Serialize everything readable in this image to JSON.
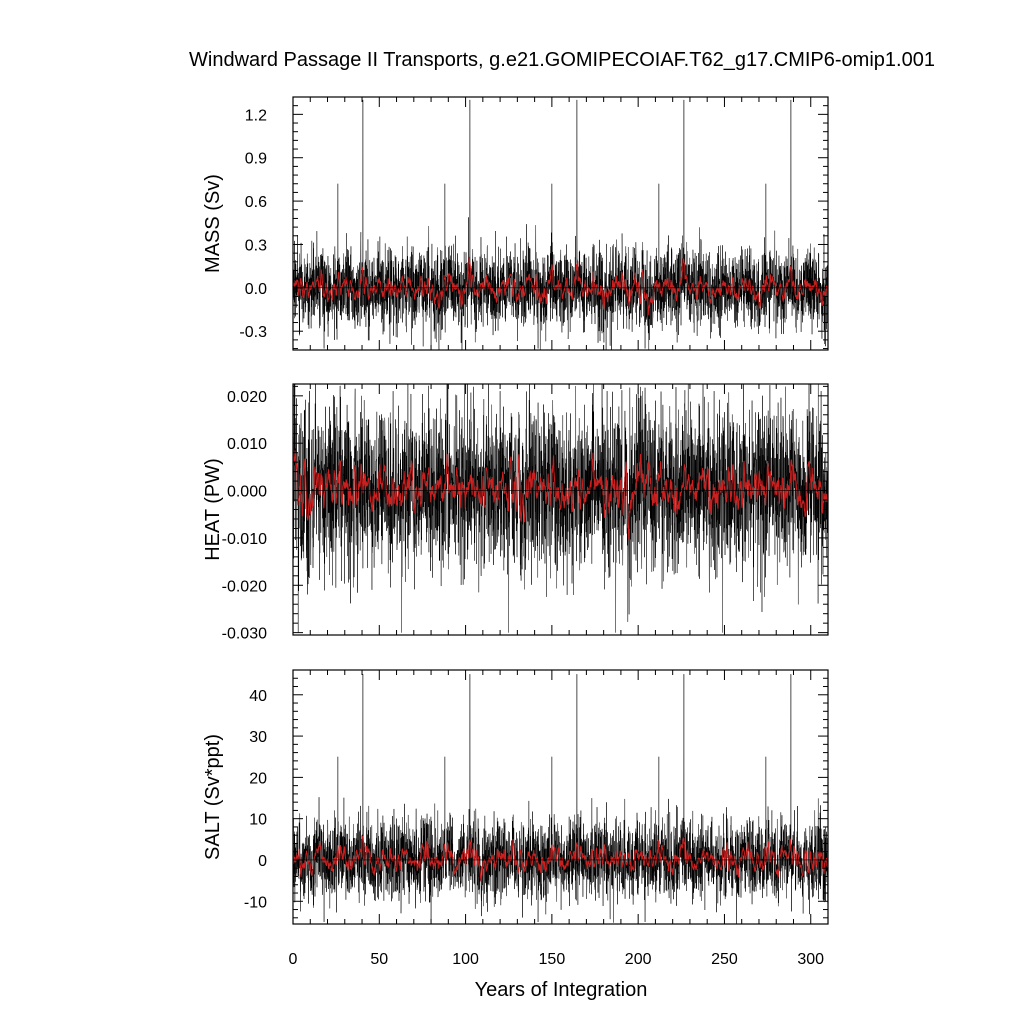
{
  "title": "Windward Passage II Transports, g.e21.GOMIPECOIAF.T62_g17.CMIP6-omip1.001",
  "xlabel": "Years of Integration",
  "colors": {
    "raw": "#000000",
    "smoothed": "#cc1f1f",
    "frame": "#000000"
  },
  "chart_data": [
    {
      "type": "line",
      "title": "Windward Passage II Transports, g.e21.GOMIPECOIAF.T62_g17.CMIP6-omip1.001",
      "ylabel": "MASS (Sv)",
      "xlabel": "",
      "xlim": [
        0,
        310
      ],
      "ylim": [
        -0.43,
        1.32
      ],
      "xticks": [
        "0",
        "50",
        "100",
        "150",
        "200",
        "250",
        "300"
      ],
      "yticks": [
        "-0.3",
        "0.0",
        "0.3",
        "0.6",
        "0.9",
        "1.2"
      ],
      "ytick_values": [
        -0.3,
        0.0,
        0.3,
        0.6,
        0.9,
        1.2
      ],
      "grid": false,
      "series": [],
      "cycle_length_years": 62,
      "raw_mean": 0.0,
      "raw_typical_range": [
        -0.2,
        0.2
      ],
      "peaks": [
        {
          "x": 40.5,
          "y": 1.3
        },
        {
          "x": 102.5,
          "y": 1.3
        },
        {
          "x": 164.5,
          "y": 1.3
        },
        {
          "x": 226.5,
          "y": 1.3
        },
        {
          "x": 288.5,
          "y": 1.3
        },
        {
          "x": 26,
          "y": 0.72
        },
        {
          "x": 88,
          "y": 0.72
        },
        {
          "x": 150,
          "y": 0.72
        },
        {
          "x": 212,
          "y": 0.72
        },
        {
          "x": 274,
          "y": 0.72
        }
      ],
      "troughs": [
        {
          "x": 18,
          "y": -0.42
        },
        {
          "x": 80,
          "y": -0.42
        },
        {
          "x": 142,
          "y": -0.42
        },
        {
          "x": 204,
          "y": -0.42
        }
      ]
    },
    {
      "type": "line",
      "ylabel": "HEAT (PW)",
      "xlabel": "",
      "xlim": [
        0,
        310
      ],
      "ylim": [
        -0.0305,
        0.0225
      ],
      "xticks": [
        "0",
        "50",
        "100",
        "150",
        "200",
        "250",
        "300"
      ],
      "yticks": [
        "-0.030",
        "-0.020",
        "-0.010",
        "0.000",
        "0.010",
        "0.020"
      ],
      "ytick_values": [
        -0.03,
        -0.02,
        -0.01,
        0.0,
        0.01,
        0.02
      ],
      "grid": false,
      "series": [],
      "cycle_length_years": 62,
      "raw_mean": 0.0,
      "raw_typical_range": [
        -0.012,
        0.012
      ],
      "peaks": [
        {
          "x": 36,
          "y": 0.0215
        },
        {
          "x": 58,
          "y": 0.021
        },
        {
          "x": 120,
          "y": 0.021
        },
        {
          "x": 182,
          "y": 0.021
        },
        {
          "x": 244,
          "y": 0.021
        },
        {
          "x": 306,
          "y": 0.021
        }
      ],
      "troughs": [
        {
          "x": 3,
          "y": -0.03
        },
        {
          "x": 63,
          "y": -0.03
        },
        {
          "x": 125,
          "y": -0.03
        },
        {
          "x": 187,
          "y": -0.03
        },
        {
          "x": 249,
          "y": -0.03
        }
      ]
    },
    {
      "type": "line",
      "ylabel": "SALT (Sv*ppt)",
      "xlabel": "Years of Integration",
      "xlim": [
        0,
        310
      ],
      "ylim": [
        -15.5,
        46
      ],
      "xticks": [
        "0",
        "50",
        "100",
        "150",
        "200",
        "250",
        "300"
      ],
      "yticks": [
        "-10",
        "0",
        "10",
        "20",
        "30",
        "40"
      ],
      "ytick_values": [
        -10,
        0,
        10,
        20,
        30,
        40
      ],
      "grid": false,
      "series": [],
      "cycle_length_years": 62,
      "raw_mean": 0,
      "raw_typical_range": [
        -7,
        7
      ],
      "peaks": [
        {
          "x": 40.5,
          "y": 45
        },
        {
          "x": 102.5,
          "y": 45
        },
        {
          "x": 164.5,
          "y": 45
        },
        {
          "x": 226.5,
          "y": 45
        },
        {
          "x": 288.5,
          "y": 45
        },
        {
          "x": 26,
          "y": 25
        },
        {
          "x": 88,
          "y": 25
        },
        {
          "x": 150,
          "y": 25
        },
        {
          "x": 212,
          "y": 25
        },
        {
          "x": 274,
          "y": 25
        }
      ],
      "troughs": [
        {
          "x": 18,
          "y": -15
        },
        {
          "x": 80,
          "y": -15
        },
        {
          "x": 142,
          "y": -15
        },
        {
          "x": 204,
          "y": -15
        }
      ]
    }
  ]
}
